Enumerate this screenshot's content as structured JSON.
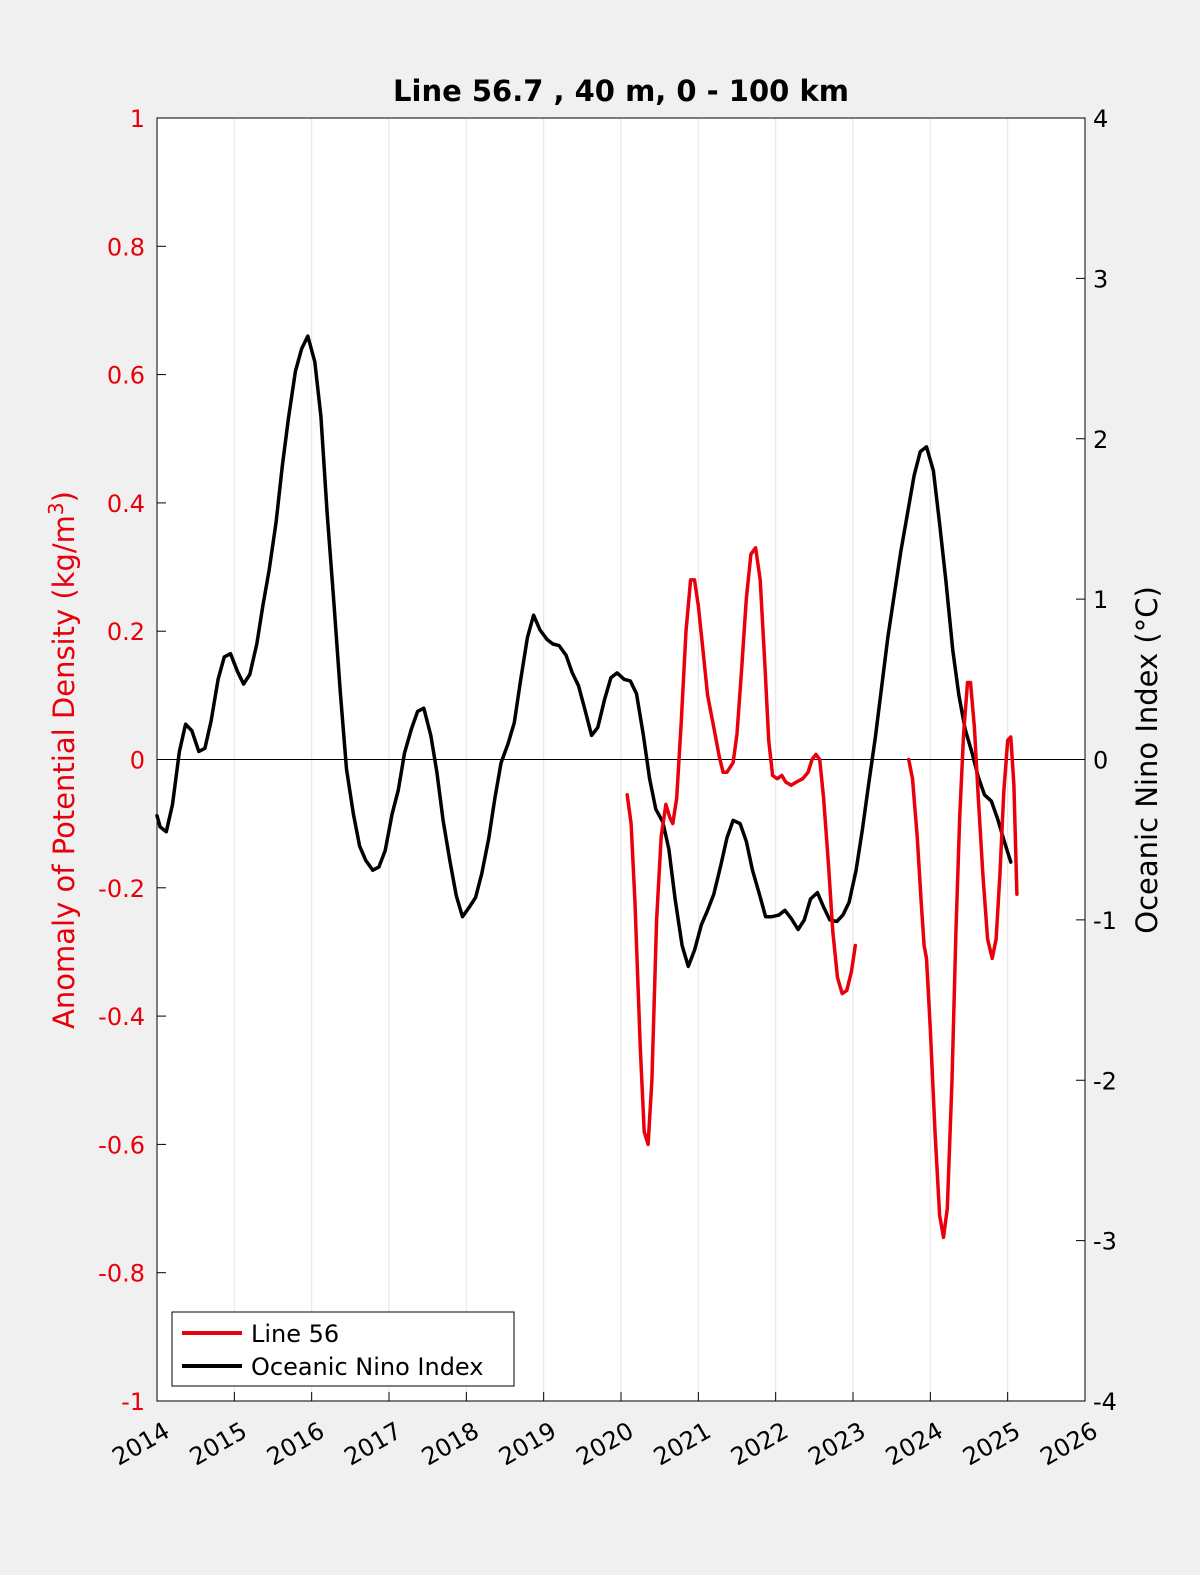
{
  "chart_data": {
    "type": "line",
    "title": "Line 56.7 , 40 m, 0 - 100 km",
    "xlabel": "",
    "ylabel_left": "Anomaly of Potential Density (kg/m³)",
    "ylabel_left_base": "Anomaly of Potential Density (kg/m",
    "ylabel_left_sup": "3",
    "ylabel_left_close": ")",
    "ylabel_right": "Oceanic Nino Index (°C)",
    "xlim": [
      2014,
      2026
    ],
    "ylim_left": [
      -1,
      1
    ],
    "ylim_right": [
      -4,
      4
    ],
    "x_ticks": [
      "2014",
      "2015",
      "2016",
      "2017",
      "2018",
      "2019",
      "2020",
      "2021",
      "2022",
      "2023",
      "2024",
      "2025",
      "2026"
    ],
    "y_left_ticks": [
      "1",
      "0.8",
      "0.6",
      "0.4",
      "0.2",
      "0",
      "-0.2",
      "-0.4",
      "-0.6",
      "-0.8",
      "-1"
    ],
    "y_right_ticks": [
      "4",
      "3",
      "2",
      "1",
      "0",
      "-1",
      "-2",
      "-3",
      "-4"
    ],
    "grid": "vertical",
    "legend_position": "bottom-left",
    "colors": {
      "line56": "#e8000b",
      "oni": "#000000",
      "left_axis": "#e8000b",
      "right_axis": "#000000"
    },
    "series": [
      {
        "name": "Line 56",
        "axis": "left",
        "segments": [
          [
            [
              2020.08,
              -0.055
            ],
            [
              2020.13,
              -0.1
            ],
            [
              2020.18,
              -0.22
            ],
            [
              2020.25,
              -0.45
            ],
            [
              2020.3,
              -0.58
            ],
            [
              2020.35,
              -0.6
            ],
            [
              2020.4,
              -0.5
            ],
            [
              2020.46,
              -0.25
            ],
            [
              2020.52,
              -0.12
            ],
            [
              2020.58,
              -0.07
            ],
            [
              2020.63,
              -0.09
            ],
            [
              2020.67,
              -0.1
            ],
            [
              2020.72,
              -0.06
            ],
            [
              2020.78,
              0.06
            ],
            [
              2020.84,
              0.2
            ],
            [
              2020.9,
              0.28
            ],
            [
              2020.95,
              0.28
            ],
            [
              2021.0,
              0.24
            ],
            [
              2021.06,
              0.17
            ],
            [
              2021.12,
              0.1
            ],
            [
              2021.2,
              0.05
            ],
            [
              2021.27,
              0.005
            ],
            [
              2021.32,
              -0.02
            ],
            [
              2021.37,
              -0.02
            ],
            [
              2021.45,
              -0.005
            ],
            [
              2021.5,
              0.04
            ],
            [
              2021.56,
              0.14
            ],
            [
              2021.62,
              0.25
            ],
            [
              2021.68,
              0.32
            ],
            [
              2021.74,
              0.33
            ],
            [
              2021.8,
              0.28
            ],
            [
              2021.86,
              0.15
            ],
            [
              2021.91,
              0.03
            ],
            [
              2021.96,
              -0.025
            ],
            [
              2022.02,
              -0.03
            ],
            [
              2022.08,
              -0.025
            ],
            [
              2022.13,
              -0.035
            ],
            [
              2022.2,
              -0.04
            ],
            [
              2022.27,
              -0.035
            ],
            [
              2022.35,
              -0.03
            ],
            [
              2022.42,
              -0.02
            ],
            [
              2022.47,
              0.0
            ],
            [
              2022.52,
              0.008
            ],
            [
              2022.57,
              0.0
            ],
            [
              2022.62,
              -0.06
            ],
            [
              2022.68,
              -0.16
            ],
            [
              2022.74,
              -0.27
            ],
            [
              2022.8,
              -0.34
            ],
            [
              2022.86,
              -0.365
            ],
            [
              2022.92,
              -0.36
            ],
            [
              2022.98,
              -0.33
            ],
            [
              2023.03,
              -0.29
            ]
          ],
          [
            [
              2023.72,
              0.0
            ],
            [
              2023.77,
              -0.03
            ],
            [
              2023.83,
              -0.12
            ],
            [
              2023.88,
              -0.22
            ],
            [
              2023.92,
              -0.29
            ],
            [
              2023.95,
              -0.31
            ],
            [
              2024.0,
              -0.42
            ],
            [
              2024.06,
              -0.58
            ],
            [
              2024.12,
              -0.71
            ],
            [
              2024.17,
              -0.745
            ],
            [
              2024.22,
              -0.7
            ],
            [
              2024.28,
              -0.5
            ],
            [
              2024.33,
              -0.27
            ],
            [
              2024.38,
              -0.09
            ],
            [
              2024.43,
              0.04
            ],
            [
              2024.48,
              0.12
            ],
            [
              2024.52,
              0.12
            ],
            [
              2024.57,
              0.05
            ],
            [
              2024.62,
              -0.06
            ],
            [
              2024.68,
              -0.18
            ],
            [
              2024.74,
              -0.28
            ],
            [
              2024.8,
              -0.31
            ],
            [
              2024.85,
              -0.28
            ],
            [
              2024.9,
              -0.18
            ],
            [
              2024.95,
              -0.05
            ],
            [
              2025.0,
              0.03
            ],
            [
              2025.04,
              0.035
            ],
            [
              2025.08,
              -0.04
            ],
            [
              2025.12,
              -0.21
            ]
          ]
        ]
      },
      {
        "name": "Oceanic Nino Index",
        "axis": "right",
        "points": [
          [
            2014.0,
            -0.35
          ],
          [
            2014.04,
            -0.42
          ],
          [
            2014.12,
            -0.45
          ],
          [
            2014.2,
            -0.28
          ],
          [
            2014.29,
            0.05
          ],
          [
            2014.37,
            0.22
          ],
          [
            2014.45,
            0.18
          ],
          [
            2014.54,
            0.05
          ],
          [
            2014.62,
            0.07
          ],
          [
            2014.7,
            0.24
          ],
          [
            2014.79,
            0.5
          ],
          [
            2014.87,
            0.64
          ],
          [
            2014.95,
            0.66
          ],
          [
            2015.04,
            0.55
          ],
          [
            2015.12,
            0.47
          ],
          [
            2015.2,
            0.53
          ],
          [
            2015.29,
            0.72
          ],
          [
            2015.37,
            0.96
          ],
          [
            2015.45,
            1.18
          ],
          [
            2015.54,
            1.48
          ],
          [
            2015.62,
            1.83
          ],
          [
            2015.7,
            2.13
          ],
          [
            2015.79,
            2.42
          ],
          [
            2015.87,
            2.56
          ],
          [
            2015.95,
            2.64
          ],
          [
            2016.04,
            2.48
          ],
          [
            2016.12,
            2.14
          ],
          [
            2016.2,
            1.54
          ],
          [
            2016.29,
            0.96
          ],
          [
            2016.37,
            0.42
          ],
          [
            2016.45,
            -0.06
          ],
          [
            2016.54,
            -0.34
          ],
          [
            2016.62,
            -0.54
          ],
          [
            2016.7,
            -0.63
          ],
          [
            2016.79,
            -0.69
          ],
          [
            2016.87,
            -0.67
          ],
          [
            2016.95,
            -0.57
          ],
          [
            2017.04,
            -0.34
          ],
          [
            2017.12,
            -0.19
          ],
          [
            2017.2,
            0.04
          ],
          [
            2017.29,
            0.19
          ],
          [
            2017.37,
            0.3
          ],
          [
            2017.45,
            0.32
          ],
          [
            2017.54,
            0.15
          ],
          [
            2017.62,
            -0.08
          ],
          [
            2017.7,
            -0.38
          ],
          [
            2017.79,
            -0.64
          ],
          [
            2017.87,
            -0.85
          ],
          [
            2017.95,
            -0.98
          ],
          [
            2018.04,
            -0.92
          ],
          [
            2018.12,
            -0.86
          ],
          [
            2018.2,
            -0.71
          ],
          [
            2018.29,
            -0.49
          ],
          [
            2018.37,
            -0.24
          ],
          [
            2018.45,
            -0.02
          ],
          [
            2018.54,
            0.1
          ],
          [
            2018.62,
            0.23
          ],
          [
            2018.7,
            0.49
          ],
          [
            2018.79,
            0.76
          ],
          [
            2018.87,
            0.9
          ],
          [
            2018.95,
            0.81
          ],
          [
            2019.04,
            0.75
          ],
          [
            2019.12,
            0.72
          ],
          [
            2019.2,
            0.71
          ],
          [
            2019.29,
            0.65
          ],
          [
            2019.37,
            0.54
          ],
          [
            2019.45,
            0.46
          ],
          [
            2019.54,
            0.3
          ],
          [
            2019.62,
            0.15
          ],
          [
            2019.7,
            0.2
          ],
          [
            2019.79,
            0.38
          ],
          [
            2019.87,
            0.51
          ],
          [
            2019.95,
            0.54
          ],
          [
            2020.04,
            0.5
          ],
          [
            2020.12,
            0.49
          ],
          [
            2020.2,
            0.41
          ],
          [
            2020.29,
            0.15
          ],
          [
            2020.37,
            -0.12
          ],
          [
            2020.45,
            -0.31
          ],
          [
            2020.54,
            -0.39
          ],
          [
            2020.62,
            -0.56
          ],
          [
            2020.7,
            -0.87
          ],
          [
            2020.79,
            -1.16
          ],
          [
            2020.87,
            -1.29
          ],
          [
            2020.95,
            -1.19
          ],
          [
            2021.04,
            -1.03
          ],
          [
            2021.12,
            -0.94
          ],
          [
            2021.2,
            -0.84
          ],
          [
            2021.29,
            -0.66
          ],
          [
            2021.37,
            -0.49
          ],
          [
            2021.45,
            -0.38
          ],
          [
            2021.54,
            -0.4
          ],
          [
            2021.62,
            -0.51
          ],
          [
            2021.7,
            -0.69
          ],
          [
            2021.79,
            -0.84
          ],
          [
            2021.87,
            -0.98
          ],
          [
            2021.95,
            -0.98
          ],
          [
            2022.04,
            -0.97
          ],
          [
            2022.12,
            -0.94
          ],
          [
            2022.2,
            -0.99
          ],
          [
            2022.29,
            -1.06
          ],
          [
            2022.37,
            -1.0
          ],
          [
            2022.45,
            -0.87
          ],
          [
            2022.54,
            -0.83
          ],
          [
            2022.62,
            -0.92
          ],
          [
            2022.7,
            -1.0
          ],
          [
            2022.79,
            -1.01
          ],
          [
            2022.87,
            -0.97
          ],
          [
            2022.95,
            -0.89
          ],
          [
            2023.04,
            -0.69
          ],
          [
            2023.12,
            -0.44
          ],
          [
            2023.2,
            -0.16
          ],
          [
            2023.29,
            0.14
          ],
          [
            2023.37,
            0.45
          ],
          [
            2023.45,
            0.76
          ],
          [
            2023.54,
            1.05
          ],
          [
            2023.62,
            1.3
          ],
          [
            2023.7,
            1.52
          ],
          [
            2023.79,
            1.77
          ],
          [
            2023.87,
            1.92
          ],
          [
            2023.95,
            1.95
          ],
          [
            2024.04,
            1.8
          ],
          [
            2024.12,
            1.47
          ],
          [
            2024.2,
            1.12
          ],
          [
            2024.29,
            0.68
          ],
          [
            2024.37,
            0.4
          ],
          [
            2024.45,
            0.19
          ],
          [
            2024.54,
            0.04
          ],
          [
            2024.62,
            -0.11
          ],
          [
            2024.7,
            -0.22
          ],
          [
            2024.79,
            -0.26
          ],
          [
            2024.87,
            -0.37
          ],
          [
            2024.95,
            -0.5
          ],
          [
            2025.04,
            -0.64
          ]
        ]
      }
    ]
  }
}
